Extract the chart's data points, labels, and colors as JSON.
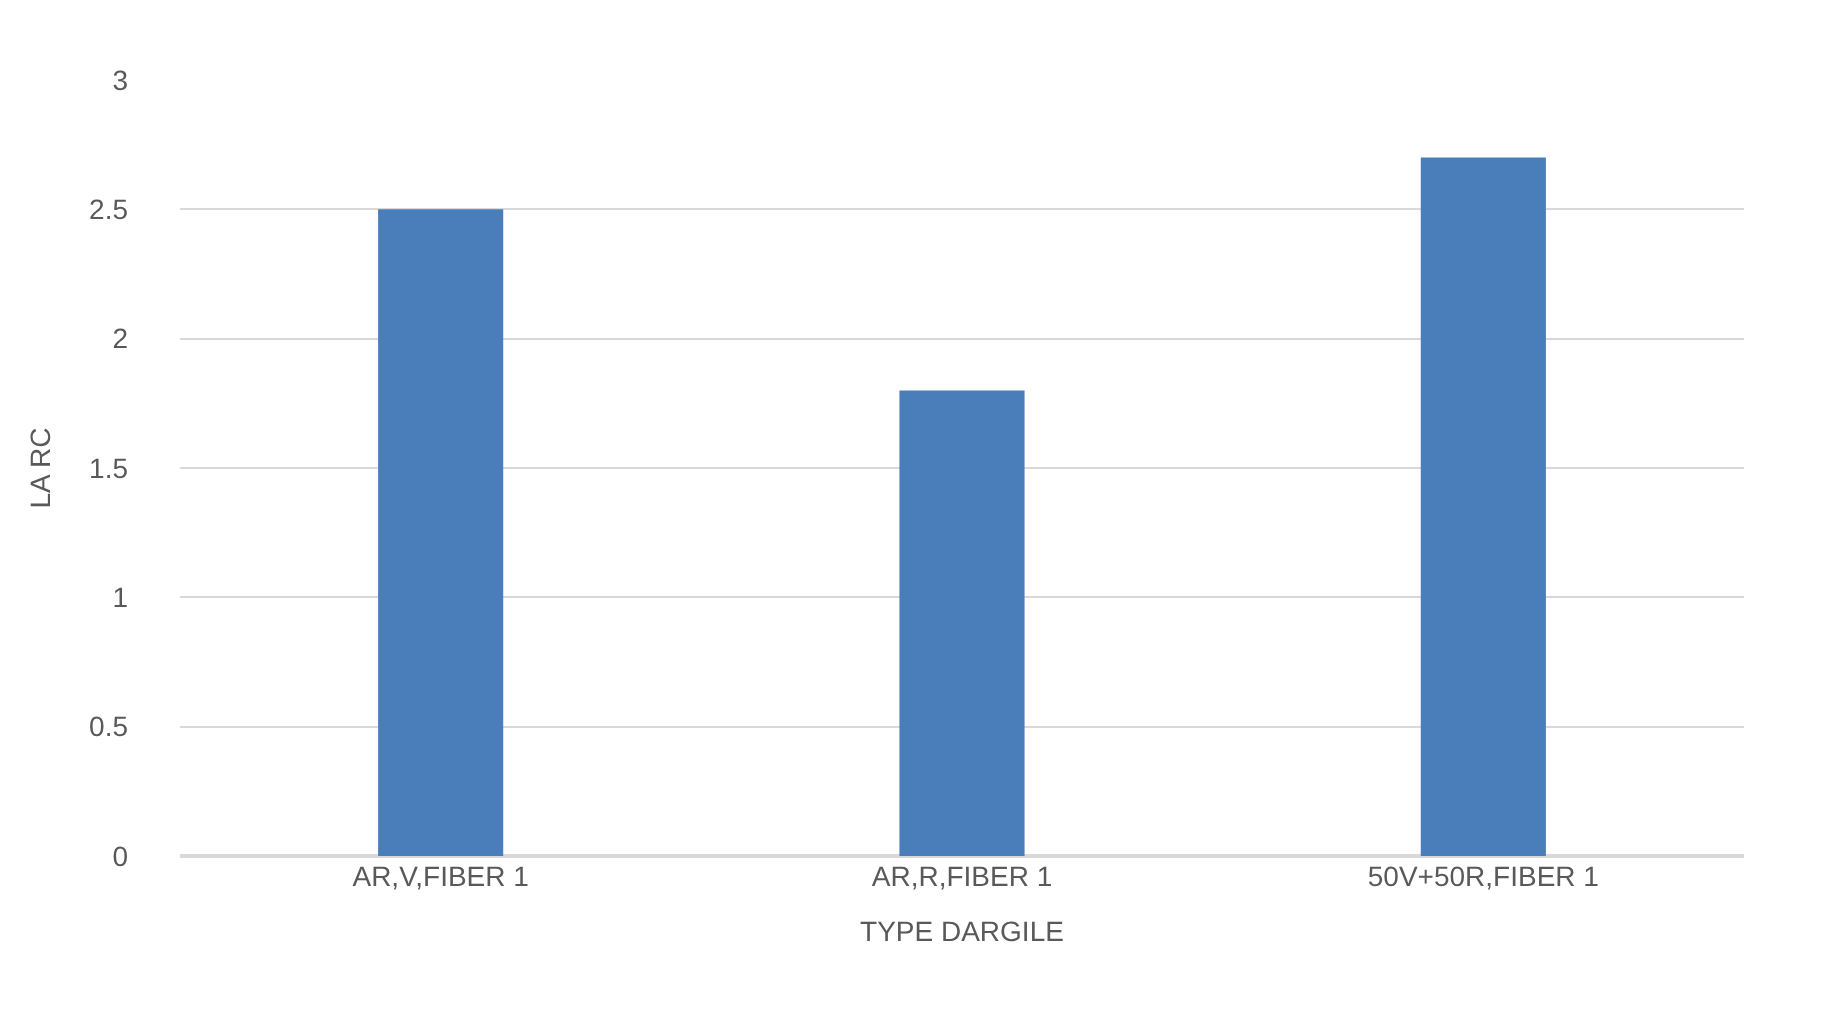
{
  "chart_data": {
    "type": "bar",
    "xlabel": "TYPE DARGILE",
    "ylabel": "LA RC",
    "categories": [
      "AR,V,FIBER 1",
      "AR,R,FIBER 1",
      "50V+50R,FIBER 1"
    ],
    "values": [
      2.5,
      1.8,
      2.7
    ],
    "color": "#4a7ebb",
    "ylim": [
      0,
      3
    ],
    "yticks": [
      0,
      0.5,
      1,
      1.5,
      2,
      2.5,
      3
    ],
    "grid": "y"
  }
}
